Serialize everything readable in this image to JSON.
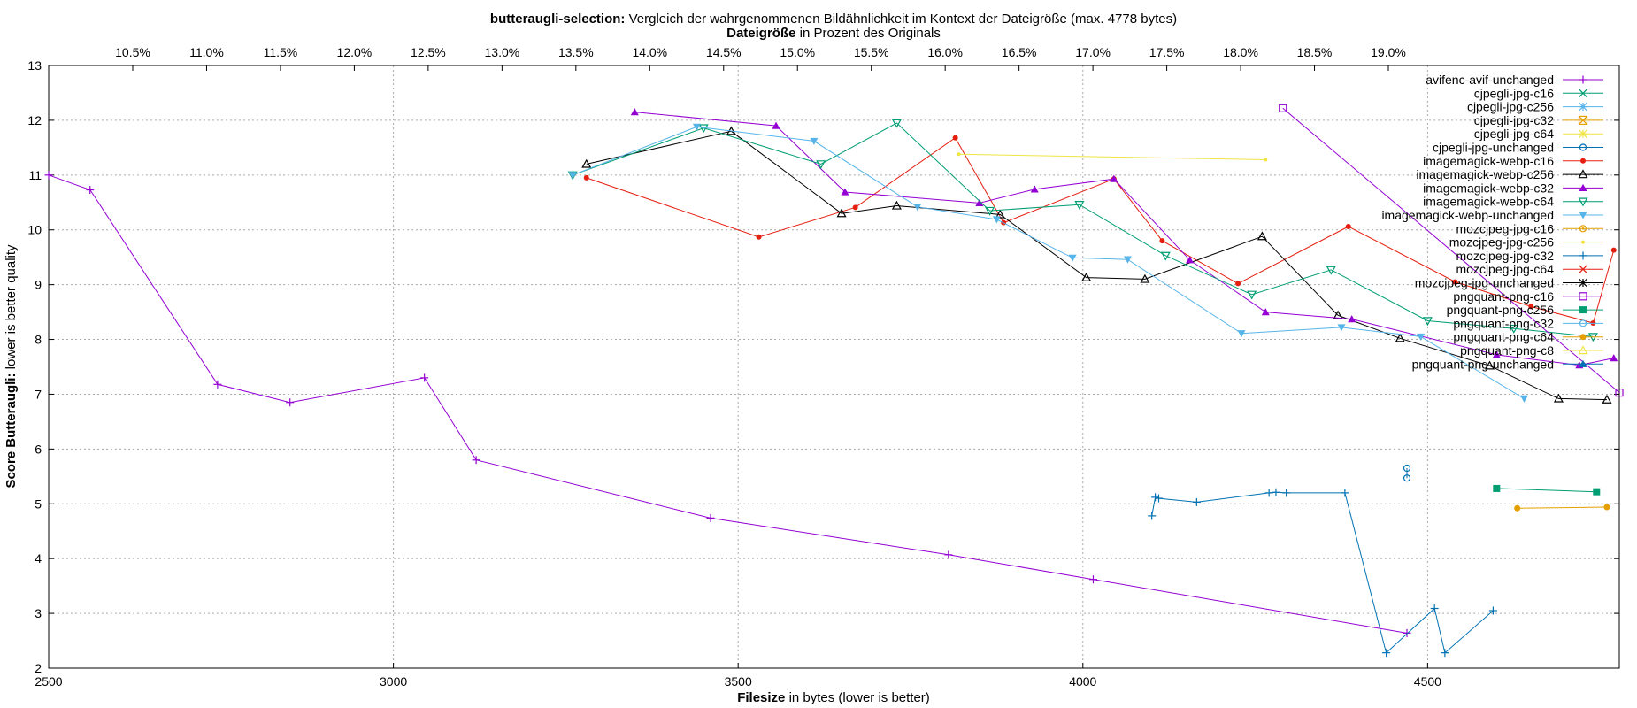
{
  "chart_data": {
    "type": "line",
    "title": {
      "bold": "butteraugli-selection:",
      "rest": " Vergleich der wahrgenommenen Bildähnlichkeit im Kontext der Dateigröße (max. 4778 bytes)"
    },
    "x2label": {
      "bold": "Dateigröße",
      "rest": " in Prozent des Originals"
    },
    "xlabel": {
      "bold": "Filesize",
      "rest": " in bytes (lower is better)"
    },
    "ylabel": {
      "bold": "Score Butteraugli:",
      "rest": " lower is better quality"
    },
    "xlim": [
      2500,
      4778
    ],
    "ylim": [
      2,
      13
    ],
    "x_ticks": [
      "2500",
      "3000",
      "3500",
      "4000",
      "4500"
    ],
    "y_ticks": [
      "2",
      "3",
      "4",
      "5",
      "6",
      "7",
      "8",
      "9",
      "10",
      "11",
      "12",
      "13"
    ],
    "x2_ticks": [
      "10.5%",
      "11.0%",
      "11.5%",
      "12.0%",
      "12.5%",
      "13.0%",
      "13.5%",
      "14.0%",
      "14.5%",
      "15.0%",
      "15.5%",
      "16.0%",
      "16.5%",
      "17.0%",
      "17.5%",
      "18.0%",
      "18.5%",
      "19.0%"
    ],
    "x2_percent_of_original": [
      10.5,
      11.0,
      11.5,
      12.0,
      12.5,
      13.0,
      13.5,
      14.0,
      14.5,
      15.0,
      15.5,
      16.0,
      16.5,
      17.0,
      17.5,
      18.0,
      18.5,
      19.0
    ],
    "grid": true,
    "legend_position": "top-right",
    "series": [
      {
        "name": "avifenc-avif-unchanged",
        "color": "#9400d3",
        "marker": "plus",
        "points": [
          [
            2500,
            11.0
          ],
          [
            2560,
            10.73
          ],
          [
            2745,
            7.18
          ],
          [
            2850,
            6.85
          ],
          [
            3045,
            7.3
          ],
          [
            3120,
            5.8
          ],
          [
            3460,
            4.74
          ],
          [
            3805,
            4.07
          ],
          [
            4015,
            3.62
          ],
          [
            4470,
            2.64
          ]
        ]
      },
      {
        "name": "cjpegli-jpg-c16",
        "color": "#009e73",
        "marker": "cross",
        "points": []
      },
      {
        "name": "cjpegli-jpg-c256",
        "color": "#56b4e9",
        "marker": "star",
        "points": []
      },
      {
        "name": "cjpegli-jpg-c32",
        "color": "#e69f00",
        "marker": "square-x",
        "points": []
      },
      {
        "name": "cjpegli-jpg-c64",
        "color": "#f0e442",
        "marker": "star-dark",
        "points": []
      },
      {
        "name": "cjpegli-jpg-unchanged",
        "color": "#0072b2",
        "marker": "circle",
        "points": [
          [
            4470,
            5.47
          ],
          [
            4470,
            5.65
          ]
        ]
      },
      {
        "name": "imagemagick-webp-c16",
        "color": "#e51e10",
        "marker": "dot",
        "points": [
          [
            3280,
            10.95
          ],
          [
            3530,
            9.87
          ],
          [
            3670,
            10.41
          ],
          [
            3815,
            11.68
          ],
          [
            3885,
            10.13
          ],
          [
            4045,
            10.93
          ],
          [
            4115,
            9.8
          ],
          [
            4225,
            9.02
          ],
          [
            4385,
            10.06
          ],
          [
            4540,
            9.05
          ],
          [
            4650,
            8.6
          ],
          [
            4740,
            8.3
          ],
          [
            4770,
            9.63
          ]
        ]
      },
      {
        "name": "imagemagick-webp-c256",
        "color": "#000000",
        "marker": "triangle",
        "points": [
          [
            3280,
            11.2
          ],
          [
            3490,
            11.8
          ],
          [
            3650,
            10.3
          ],
          [
            3730,
            10.44
          ],
          [
            3880,
            10.28
          ],
          [
            4005,
            9.13
          ],
          [
            4090,
            9.1
          ],
          [
            4260,
            9.88
          ],
          [
            4370,
            8.44
          ],
          [
            4460,
            8.02
          ],
          [
            4590,
            7.52
          ],
          [
            4690,
            6.92
          ],
          [
            4760,
            6.9
          ]
        ]
      },
      {
        "name": "imagemagick-webp-c32",
        "color": "#9400d3",
        "marker": "triangle-filled",
        "points": [
          [
            3350,
            12.15
          ],
          [
            3555,
            11.9
          ],
          [
            3655,
            10.69
          ],
          [
            3850,
            10.49
          ],
          [
            3930,
            10.74
          ],
          [
            4045,
            10.93
          ],
          [
            4155,
            9.45
          ],
          [
            4265,
            8.5
          ],
          [
            4390,
            8.37
          ],
          [
            4600,
            7.72
          ],
          [
            4720,
            7.53
          ],
          [
            4770,
            7.66
          ]
        ]
      },
      {
        "name": "imagemagick-webp-c64",
        "color": "#009e73",
        "marker": "triangle-down",
        "points": [
          [
            3260,
            11.0
          ],
          [
            3450,
            11.86
          ],
          [
            3620,
            11.2
          ],
          [
            3730,
            11.95
          ],
          [
            3865,
            10.35
          ],
          [
            3995,
            10.46
          ],
          [
            4120,
            9.53
          ],
          [
            4245,
            8.82
          ],
          [
            4360,
            9.27
          ],
          [
            4500,
            8.34
          ],
          [
            4625,
            8.2
          ],
          [
            4740,
            8.05
          ]
        ]
      },
      {
        "name": "imagemagick-webp-unchanged",
        "color": "#56b4e9",
        "marker": "triangle-down-filled",
        "points": [
          [
            3260,
            11.0
          ],
          [
            3440,
            11.88
          ],
          [
            3610,
            11.62
          ],
          [
            3760,
            10.42
          ],
          [
            3875,
            10.19
          ],
          [
            3985,
            9.49
          ],
          [
            4065,
            9.46
          ],
          [
            4230,
            8.11
          ],
          [
            4375,
            8.22
          ],
          [
            4490,
            8.05
          ],
          [
            4640,
            6.92
          ]
        ]
      },
      {
        "name": "mozcjpeg-jpg-c16",
        "color": "#e69f00",
        "marker": "circle-dot",
        "points": []
      },
      {
        "name": "mozcjpeg-jpg-c256",
        "color": "#f0e442",
        "marker": "small-dot",
        "points": [
          [
            3820,
            11.38
          ],
          [
            4265,
            11.28
          ]
        ]
      },
      {
        "name": "mozcjpeg-jpg-c32",
        "color": "#0072b2",
        "marker": "plus",
        "points": [
          [
            4100,
            4.78
          ],
          [
            4105,
            5.12
          ],
          [
            4110,
            5.1
          ],
          [
            4165,
            5.03
          ],
          [
            4270,
            5.2
          ],
          [
            4280,
            5.21
          ],
          [
            4295,
            5.2
          ],
          [
            4380,
            5.2
          ],
          [
            4440,
            2.28
          ],
          [
            4510,
            3.09
          ],
          [
            4525,
            2.28
          ],
          [
            4595,
            3.05
          ]
        ]
      },
      {
        "name": "mozcjpeg-jpg-c64",
        "color": "#e51e10",
        "marker": "cross",
        "points": []
      },
      {
        "name": "mozcjpeg-jpg-unchanged",
        "color": "#000000",
        "marker": "star",
        "points": []
      },
      {
        "name": "pngquant-png-c16",
        "color": "#9400d3",
        "marker": "square",
        "points": [
          [
            4290,
            12.22
          ],
          [
            4778,
            7.03
          ]
        ]
      },
      {
        "name": "pngquant-png-c256",
        "color": "#009e73",
        "marker": "square-filled",
        "points": [
          [
            4600,
            5.28
          ],
          [
            4745,
            5.22
          ]
        ]
      },
      {
        "name": "pngquant-png-c32",
        "color": "#56b4e9",
        "marker": "circle",
        "points": []
      },
      {
        "name": "pngquant-png-c64",
        "color": "#e69f00",
        "marker": "circle-filled",
        "points": [
          [
            4630,
            4.92
          ],
          [
            4760,
            4.94
          ]
        ]
      },
      {
        "name": "pngquant-png-c8",
        "color": "#f0e442",
        "marker": "triangle",
        "points": []
      },
      {
        "name": "pngquant-png-unchanged",
        "color": "#0072b2",
        "marker": "triangle-filled",
        "points": []
      }
    ]
  }
}
